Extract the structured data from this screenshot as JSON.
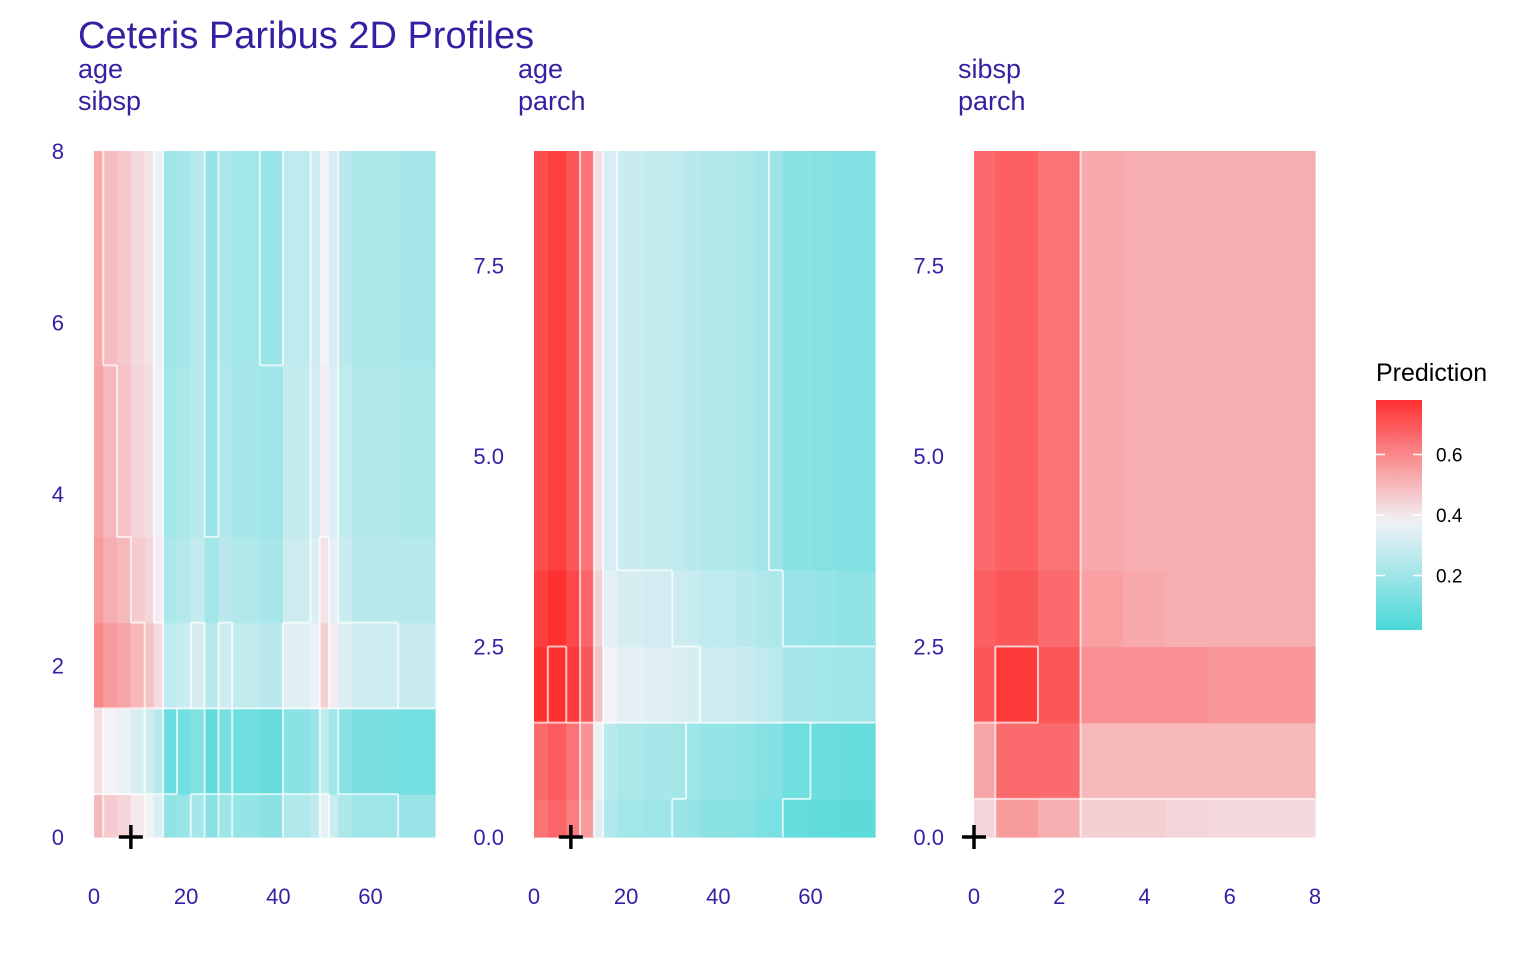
{
  "title": "Ceteris Paribus 2D Profiles",
  "colors": {
    "text": "#371ea3",
    "low": "#4ad8d8",
    "mid": "#f2f2f7",
    "high": "#ff3030",
    "contour": "#ffffff",
    "marker": "#000000"
  },
  "legend": {
    "title": "Prediction",
    "ticks": [
      0.2,
      0.4,
      0.6
    ],
    "tick_labels": [
      "0.2",
      "0.4",
      "0.6"
    ],
    "range": [
      0.02,
      0.78
    ],
    "position": "right"
  },
  "chart_data": [
    {
      "type": "heatmap",
      "subtitle_lines": [
        "age",
        "sibsp"
      ],
      "x_variable": "age",
      "y_variable": "sibsp",
      "xlim": [
        0,
        74
      ],
      "ylim": [
        0,
        8
      ],
      "x_ticks": [
        0,
        20,
        40,
        60
      ],
      "x_tick_labels": [
        "0",
        "20",
        "40",
        "60"
      ],
      "y_ticks": [
        0,
        2,
        4,
        6,
        8
      ],
      "y_tick_labels": [
        "0",
        "2",
        "4",
        "6",
        "8"
      ],
      "x_breaks": [
        0,
        2,
        5,
        8,
        11,
        13,
        15,
        18,
        21,
        24,
        27,
        30,
        36,
        41,
        47,
        49,
        51,
        53,
        56,
        60,
        66,
        74
      ],
      "y_breaks": [
        0,
        0.5,
        1.5,
        2.5,
        3.5,
        5.5,
        8
      ],
      "col_base": [
        0.5,
        0.46,
        0.44,
        0.4,
        0.38,
        0.33,
        0.17,
        0.19,
        0.22,
        0.15,
        0.2,
        0.18,
        0.16,
        0.24,
        0.27,
        0.35,
        0.29,
        0.23,
        0.2,
        0.2,
        0.19
      ],
      "row_shift": [
        0.0,
        -0.08,
        0.1,
        0.06,
        0.04,
        0.03
      ],
      "observation": {
        "x": 8,
        "y": 0
      }
    },
    {
      "type": "heatmap",
      "subtitle_lines": [
        "age",
        "parch"
      ],
      "x_variable": "age",
      "y_variable": "parch",
      "xlim": [
        0,
        74
      ],
      "ylim": [
        0,
        9
      ],
      "x_ticks": [
        0,
        20,
        40,
        60
      ],
      "x_tick_labels": [
        "0",
        "20",
        "40",
        "60"
      ],
      "y_ticks": [
        0,
        2.5,
        5,
        7.5
      ],
      "y_tick_labels": [
        "0.0",
        "2.5",
        "5.0",
        "7.5"
      ],
      "x_breaks": [
        0,
        3,
        7,
        10,
        13,
        15,
        18,
        21,
        24,
        27,
        30,
        33,
        36,
        40,
        44,
        48,
        51,
        54,
        60,
        66,
        74
      ],
      "y_breaks": [
        0,
        0.5,
        1.5,
        2.5,
        3.5,
        9
      ],
      "col_base": [
        0.7,
        0.73,
        0.68,
        0.62,
        0.4,
        0.3,
        0.27,
        0.27,
        0.26,
        0.26,
        0.25,
        0.24,
        0.22,
        0.22,
        0.21,
        0.19,
        0.18,
        0.14,
        0.13,
        0.12
      ],
      "row_shift": [
        -0.06,
        -0.04,
        0.08,
        0.05,
        0.02
      ],
      "observation": {
        "x": 8,
        "y": 0
      }
    },
    {
      "type": "heatmap",
      "subtitle_lines": [
        "sibsp",
        "parch"
      ],
      "x_variable": "sibsp",
      "y_variable": "parch",
      "xlim": [
        0,
        8
      ],
      "ylim": [
        0,
        9
      ],
      "x_ticks": [
        0,
        2,
        4,
        6,
        8
      ],
      "x_tick_labels": [
        "0",
        "2",
        "4",
        "6",
        "8"
      ],
      "y_ticks": [
        0,
        2.5,
        5,
        7.5
      ],
      "y_tick_labels": [
        "0.0",
        "2.5",
        "5.0",
        "7.5"
      ],
      "x_breaks": [
        0,
        0.5,
        1.5,
        2.5,
        3.5,
        4.5,
        5.5,
        8
      ],
      "y_breaks": [
        0,
        0.5,
        1.5,
        2.5,
        3.5,
        9
      ],
      "values": [
        [
          0.44,
          0.56,
          0.52,
          0.45,
          0.45,
          0.44,
          0.43
        ],
        [
          0.54,
          0.66,
          0.66,
          0.5,
          0.5,
          0.5,
          0.5
        ],
        [
          0.7,
          0.76,
          0.7,
          0.58,
          0.58,
          0.58,
          0.57
        ],
        [
          0.68,
          0.7,
          0.66,
          0.55,
          0.53,
          0.52,
          0.52
        ],
        [
          0.66,
          0.68,
          0.64,
          0.53,
          0.52,
          0.52,
          0.52
        ]
      ],
      "observation": {
        "x": 0,
        "y": 0
      }
    }
  ]
}
